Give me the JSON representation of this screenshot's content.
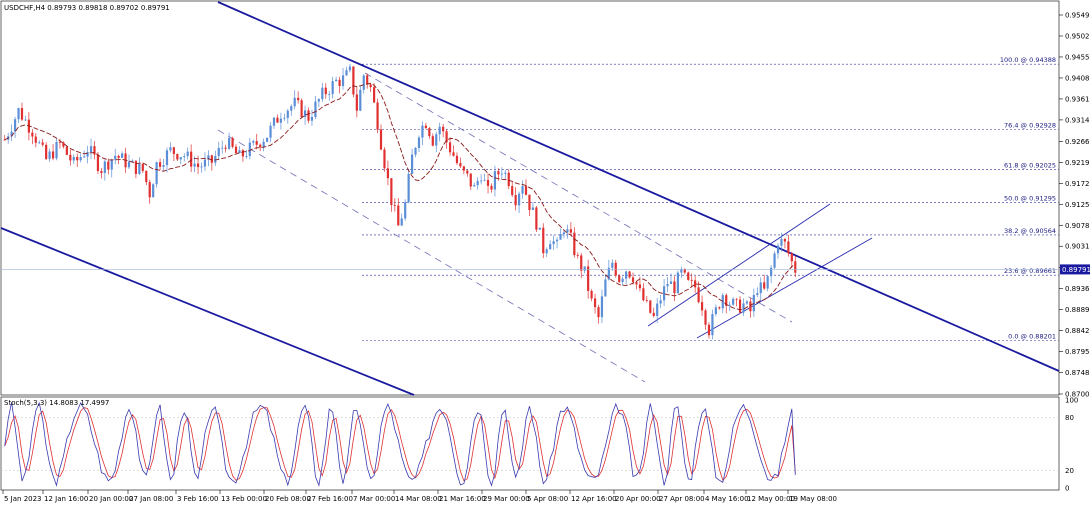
{
  "chart_data": [
    {
      "type": "candlestick",
      "symbol_line": "USDCHF,H4  0.89793 0.89818 0.89702 0.89791",
      "last_price": "0.89791",
      "price_axis_labels": [
        "0.95490",
        "0.95020",
        "0.94550",
        "0.94080",
        "0.93610",
        "0.93140",
        "0.92660",
        "0.92190",
        "0.91720",
        "0.91250",
        "0.90780",
        "0.90310",
        "0.89830",
        "0.89360",
        "0.88890",
        "0.88420",
        "0.87950",
        "0.87480",
        "0.87000"
      ],
      "ylim": [
        0.87,
        0.9549
      ],
      "time_axis_labels": [
        "5 Jan 2023",
        "12 Jan 16:00",
        "20 Jan 00:00",
        "27 Jan 08:00",
        "3 Feb 16:00",
        "13 Feb 00:00",
        "20 Feb 08:00",
        "27 Feb 16:00",
        "7 Mar 00:00",
        "14 Mar 08:00",
        "21 Mar 16:00",
        "29 Mar 00:00",
        "5 Apr 08:00",
        "12 Apr 16:00",
        "20 Apr 00:00",
        "27 Apr 08:00",
        "4 May 16:00",
        "12 May 00:00",
        "19 May 08:00"
      ],
      "fibonacci_levels": [
        {
          "label": "100.0 @ 0.94388",
          "price": 0.94388
        },
        {
          "label": "76.4 @ 0.92928",
          "price": 0.92928
        },
        {
          "label": "61.8 @ 0.92025",
          "price": 0.92025
        },
        {
          "label": "50.0 @ 0.91295",
          "price": 0.91295
        },
        {
          "label": "38.2 @ 0.90564",
          "price": 0.90564
        },
        {
          "label": "23.6 @ 0.89661",
          "price": 0.89661
        },
        {
          "label": "0.0 @ 0.88201",
          "price": 0.88201
        }
      ],
      "close_path": [
        [
          0,
          0.927
        ],
        [
          4,
          0.9335
        ],
        [
          8,
          0.929
        ],
        [
          12,
          0.9225
        ],
        [
          16,
          0.926
        ],
        [
          20,
          0.9215
        ],
        [
          24,
          0.925
        ],
        [
          28,
          0.9205
        ],
        [
          32,
          0.9235
        ],
        [
          36,
          0.9215
        ],
        [
          40,
          0.92
        ],
        [
          42,
          0.915
        ],
        [
          44,
          0.9215
        ],
        [
          48,
          0.9245
        ],
        [
          52,
          0.9235
        ],
        [
          56,
          0.921
        ],
        [
          60,
          0.922
        ],
        [
          64,
          0.9265
        ],
        [
          68,
          0.923
        ],
        [
          72,
          0.9255
        ],
        [
          76,
          0.928
        ],
        [
          80,
          0.933
        ],
        [
          84,
          0.935
        ],
        [
          88,
          0.932
        ],
        [
          92,
          0.937
        ],
        [
          96,
          0.94
        ],
        [
          98,
          0.9405
        ],
        [
          100,
          0.942
        ],
        [
          102,
          0.934
        ],
        [
          104,
          0.9415
        ],
        [
          106,
          0.9385
        ],
        [
          108,
          0.931
        ],
        [
          110,
          0.922
        ],
        [
          112,
          0.9135
        ],
        [
          114,
          0.9075
        ],
        [
          116,
          0.9125
        ],
        [
          118,
          0.923
        ],
        [
          120,
          0.929
        ],
        [
          122,
          0.931
        ],
        [
          124,
          0.927
        ],
        [
          126,
          0.93
        ],
        [
          128,
          0.9265
        ],
        [
          130,
          0.9235
        ],
        [
          132,
          0.92
        ],
        [
          134,
          0.9185
        ],
        [
          136,
          0.916
        ],
        [
          138,
          0.9195
        ],
        [
          140,
          0.915
        ],
        [
          142,
          0.9185
        ],
        [
          144,
          0.9205
        ],
        [
          146,
          0.918
        ],
        [
          148,
          0.914
        ],
        [
          150,
          0.9175
        ],
        [
          152,
          0.9125
        ],
        [
          154,
          0.9085
        ],
        [
          156,
          0.9025
        ],
        [
          158,
          0.905
        ],
        [
          160,
          0.903
        ],
        [
          162,
          0.9075
        ],
        [
          164,
          0.9045
        ],
        [
          166,
          0.9
        ],
        [
          168,
          0.897
        ],
        [
          170,
          0.8905
        ],
        [
          172,
          0.887
        ],
        [
          174,
          0.895
        ],
        [
          176,
          0.8995
        ],
        [
          178,
          0.896
        ],
        [
          180,
          0.898
        ],
        [
          182,
          0.8965
        ],
        [
          184,
          0.8925
        ],
        [
          186,
          0.8895
        ],
        [
          188,
          0.887
        ],
        [
          190,
          0.8915
        ],
        [
          192,
          0.895
        ],
        [
          194,
          0.894
        ],
        [
          196,
          0.897
        ],
        [
          198,
          0.8945
        ],
        [
          200,
          0.894
        ],
        [
          202,
          0.89
        ],
        [
          204,
          0.8845
        ],
        [
          206,
          0.8885
        ],
        [
          208,
          0.8925
        ],
        [
          210,
          0.8905
        ],
        [
          212,
          0.8895
        ],
        [
          214,
          0.89
        ],
        [
          216,
          0.8885
        ],
        [
          218,
          0.894
        ],
        [
          220,
          0.893
        ],
        [
          222,
          0.898
        ],
        [
          224,
          0.9045
        ],
        [
          226,
          0.9035
        ],
        [
          228,
          0.8995
        ],
        [
          229,
          0.8979
        ]
      ],
      "stochastic": {
        "label": "Stoch(5,3,3) 14.8083 17.4997",
        "main": 14.8083,
        "signal": 17.4997,
        "ylim": [
          0,
          100
        ],
        "levels": [
          "100",
          "80",
          "20",
          "0"
        ]
      }
    }
  ]
}
